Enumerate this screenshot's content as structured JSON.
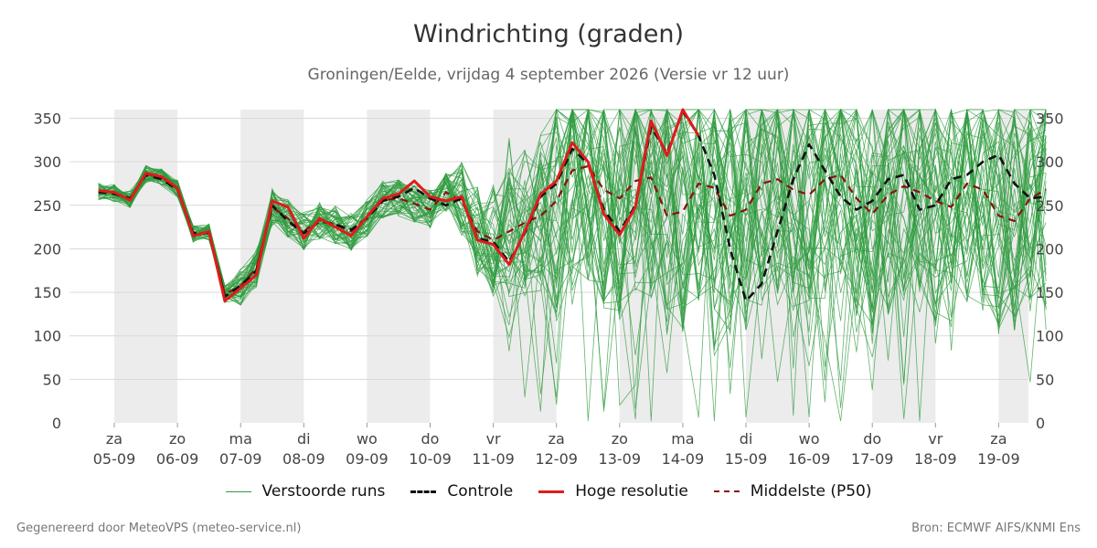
{
  "title": "Windrichting (graden)",
  "subtitle": "Groningen/Eelde, vrijdag  4 september 2026 (Versie vr 12 uur)",
  "footer": {
    "left": "Gegenereerd door MeteoVPS (meteo-service.nl)",
    "right": "Bron: ECMWF AIFS/KNMI Ens"
  },
  "colors": {
    "ensemble": "#2e9b3e",
    "control": "#111111",
    "high_res": "#e01b1b",
    "median": "#8b1010",
    "weekend_band": "#ececec",
    "grid": "#d9d9d9"
  },
  "legend": [
    {
      "key": "ensemble",
      "label": "Verstoorde runs",
      "style": "thin-solid"
    },
    {
      "key": "control",
      "label": "Controle",
      "style": "dashed"
    },
    {
      "key": "high_res",
      "label": "Hoge resolutie",
      "style": "solid"
    },
    {
      "key": "median",
      "label": "Middelste (P50)",
      "style": "dashed"
    }
  ],
  "chart_data": {
    "type": "line",
    "title": "Windrichting (graden)",
    "ylabel": "",
    "xlabel": "",
    "ylim": [
      0,
      360
    ],
    "yticks": [
      0,
      50,
      100,
      150,
      200,
      250,
      300,
      350
    ],
    "x_unit": "days since 2026-09-04 12:00 (tick positions at 00 UTC)",
    "x_range": [
      -0.7,
      15.0
    ],
    "xticks": [
      {
        "day": "za",
        "date": "05-09"
      },
      {
        "day": "zo",
        "date": "06-09"
      },
      {
        "day": "ma",
        "date": "07-09"
      },
      {
        "day": "di",
        "date": "08-09"
      },
      {
        "day": "wo",
        "date": "09-09"
      },
      {
        "day": "do",
        "date": "10-09"
      },
      {
        "day": "vr",
        "date": "11-09"
      },
      {
        "day": "za",
        "date": "12-09"
      },
      {
        "day": "zo",
        "date": "13-09"
      },
      {
        "day": "ma",
        "date": "14-09"
      },
      {
        "day": "di",
        "date": "15-09"
      },
      {
        "day": "wo",
        "date": "16-09"
      },
      {
        "day": "do",
        "date": "17-09"
      },
      {
        "day": "vr",
        "date": "18-09"
      },
      {
        "day": "za",
        "date": "19-09"
      }
    ],
    "shaded_days": [
      "05-09",
      "07-09",
      "09-09",
      "11-09",
      "13-09",
      "15-09",
      "17-09",
      "19-09"
    ],
    "series": [
      {
        "name": "Hoge resolutie",
        "key": "high_res",
        "x": [
          -0.25,
          0,
          0.25,
          0.5,
          0.75,
          1,
          1.25,
          1.5,
          1.75,
          2,
          2.25,
          2.5,
          2.75,
          3,
          3.25,
          3.5,
          3.75,
          4,
          4.25,
          4.5,
          4.75,
          5,
          5.25,
          5.5,
          5.75,
          6,
          6.25,
          6.5,
          6.75,
          7,
          7.25,
          7.5,
          7.75,
          8,
          8.25,
          8.5,
          8.75,
          9,
          9.25,
          9.5,
          9.75
        ],
        "values": [
          267,
          265,
          256,
          287,
          283,
          270,
          215,
          220,
          140,
          155,
          170,
          255,
          248,
          212,
          235,
          225,
          215,
          237,
          258,
          263,
          278,
          260,
          255,
          260,
          210,
          205,
          182,
          220,
          263,
          278,
          322,
          300,
          240,
          216,
          248,
          347,
          307,
          360,
          330,
          null,
          null
        ]
      },
      {
        "name": "Controle",
        "key": "control",
        "x": [
          -0.25,
          0,
          0.25,
          0.5,
          0.75,
          1,
          1.25,
          1.5,
          1.75,
          2,
          2.25,
          2.5,
          2.75,
          3,
          3.25,
          3.5,
          3.75,
          4,
          4.25,
          4.5,
          4.75,
          5,
          5.25,
          5.5,
          5.75,
          6,
          6.25,
          6.5,
          6.75,
          7,
          7.25,
          7.5,
          7.75,
          8,
          8.25,
          8.5,
          8.75,
          9,
          9.25,
          9.5,
          9.75,
          10,
          10.25,
          10.5,
          10.75,
          11,
          11.25,
          11.5,
          11.75,
          12,
          12.25,
          12.5,
          12.75,
          13,
          13.25,
          13.5,
          13.75,
          14,
          14.25,
          14.5,
          14.75
        ],
        "values": [
          265,
          263,
          258,
          285,
          280,
          268,
          218,
          218,
          145,
          158,
          175,
          250,
          232,
          218,
          232,
          228,
          222,
          235,
          255,
          260,
          270,
          258,
          250,
          258,
          212,
          208,
          185,
          218,
          260,
          275,
          315,
          298,
          245,
          220,
          250,
          340,
          310,
          358,
          330,
          285,
          200,
          140,
          160,
          220,
          280,
          320,
          290,
          260,
          245,
          255,
          280,
          285,
          245,
          250,
          280,
          285,
          300,
          308,
          275,
          258,
          260
        ]
      },
      {
        "name": "Middelste (P50)",
        "key": "median",
        "x": [
          -0.25,
          0,
          0.25,
          0.5,
          0.75,
          1,
          1.25,
          1.5,
          1.75,
          2,
          2.25,
          2.5,
          2.75,
          3,
          3.25,
          3.5,
          3.75,
          4,
          4.25,
          4.5,
          4.75,
          5,
          5.25,
          5.5,
          5.75,
          6,
          6.25,
          6.5,
          6.75,
          7,
          7.25,
          7.5,
          7.75,
          8,
          8.25,
          8.5,
          8.75,
          9,
          9.25,
          9.5,
          9.75,
          10,
          10.25,
          10.5,
          10.75,
          11,
          11.25,
          11.5,
          11.75,
          12,
          12.25,
          12.5,
          12.75,
          13,
          13.25,
          13.5,
          13.75,
          14,
          14.25,
          14.5,
          14.75
        ],
        "values": [
          266,
          264,
          257,
          286,
          282,
          269,
          217,
          219,
          148,
          157,
          178,
          248,
          235,
          220,
          233,
          228,
          220,
          236,
          256,
          258,
          252,
          245,
          265,
          255,
          220,
          210,
          220,
          230,
          238,
          255,
          290,
          295,
          268,
          258,
          278,
          282,
          238,
          243,
          275,
          270,
          238,
          245,
          275,
          280,
          268,
          262,
          280,
          285,
          258,
          240,
          262,
          272,
          265,
          255,
          248,
          275,
          268,
          238,
          232,
          258,
          268
        ]
      }
    ],
    "ensemble_note": "Verstoorde runs: ~50 perturbed members, tight cluster around the P50 until ~11-09, then widely scattered between 0 and 360."
  }
}
